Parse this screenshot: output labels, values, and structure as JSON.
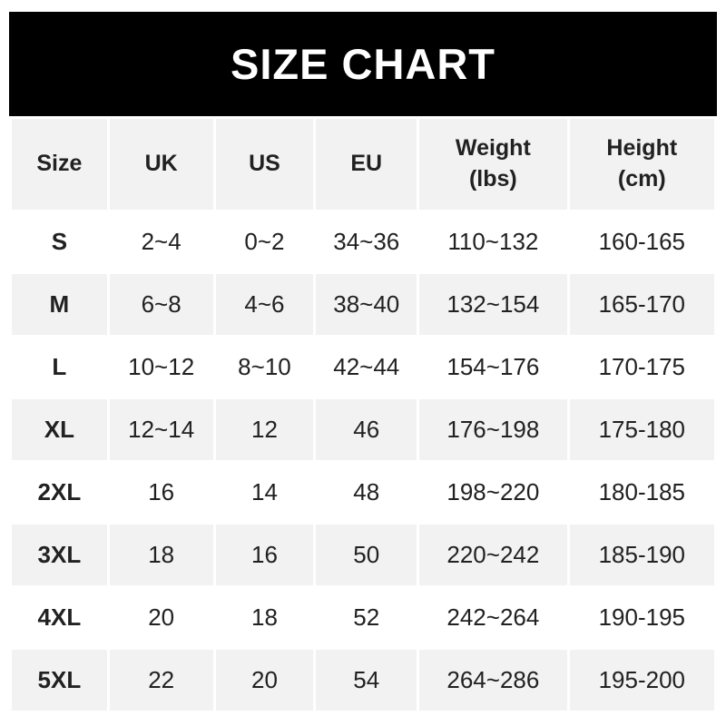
{
  "banner": {
    "title": "SIZE CHART"
  },
  "colors": {
    "banner_bg": "#000000",
    "banner_text": "#ffffff",
    "cell_gray": "#f2f2f2",
    "text": "#212121",
    "page_bg": "#ffffff"
  },
  "chart_data": {
    "type": "table",
    "title": "SIZE CHART",
    "columns": [
      "Size",
      "UK",
      "US",
      "EU",
      "Weight\n(lbs)",
      "Height\n(cm)"
    ],
    "rows": [
      [
        "S",
        "2~4",
        "0~2",
        "34~36",
        "110~132",
        "160-165"
      ],
      [
        "M",
        "6~8",
        "4~6",
        "38~40",
        "132~154",
        "165-170"
      ],
      [
        "L",
        "10~12",
        "8~10",
        "42~44",
        "154~176",
        "170-175"
      ],
      [
        "XL",
        "12~14",
        "12",
        "46",
        "176~198",
        "175-180"
      ],
      [
        "2XL",
        "16",
        "14",
        "48",
        "198~220",
        "180-185"
      ],
      [
        "3XL",
        "18",
        "16",
        "50",
        "220~242",
        "185-190"
      ],
      [
        "4XL",
        "20",
        "18",
        "52",
        "242~264",
        "190-195"
      ],
      [
        "5XL",
        "22",
        "20",
        "54",
        "264~286",
        "195-200"
      ]
    ],
    "layout_hints": {
      "header_background": "gray",
      "row_striping": "white/gray alternating starting white",
      "cell_separators": "white gaps between cells"
    }
  }
}
